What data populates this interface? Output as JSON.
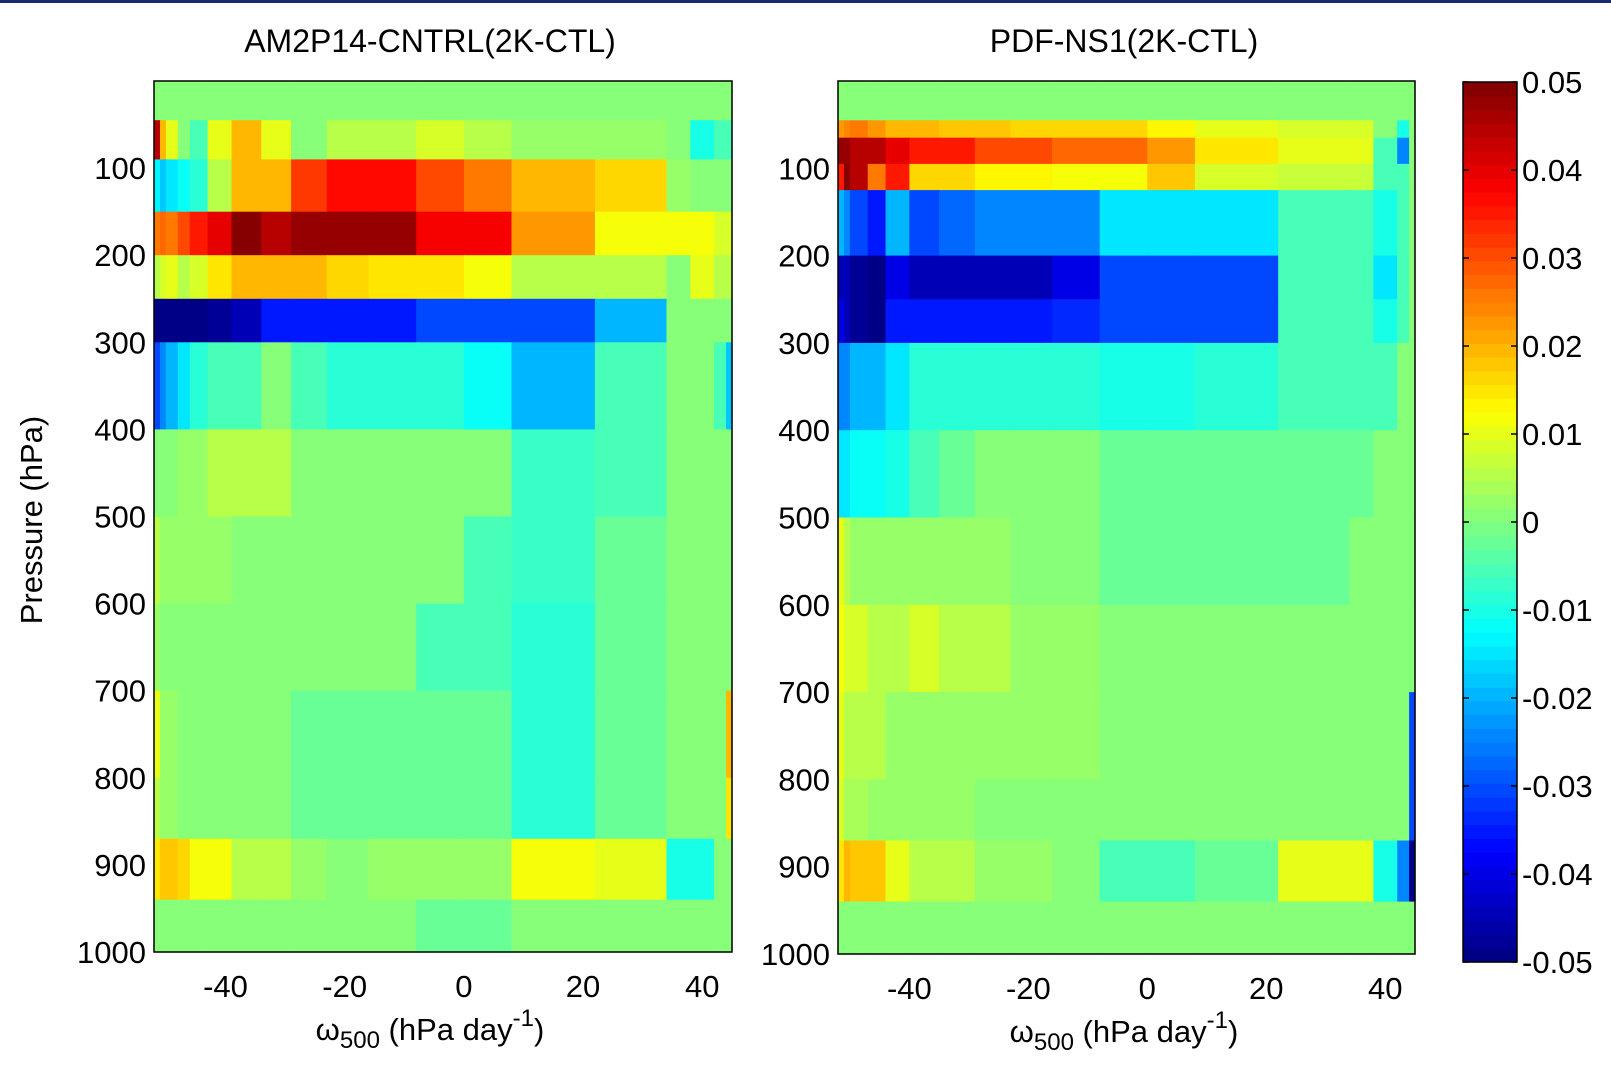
{
  "chart_data": [
    {
      "type": "heatmap",
      "title": "AM2P14-CNTRL(2K-CTL)",
      "xlabel": {
        "main": "ω",
        "sub": "500",
        "rest": " (hPa day",
        "sup": "-1",
        "close": ")"
      },
      "ylabel": "Pressure (hPa)",
      "xticks": [
        "-40",
        "-20",
        "0",
        "20",
        "40"
      ],
      "xtick_values": [
        -40,
        -20,
        0,
        20,
        40
      ],
      "yticks": [
        "100",
        "200",
        "300",
        "400",
        "500",
        "600",
        "700",
        "800",
        "900",
        "1000"
      ],
      "ytick_values": [
        100,
        200,
        300,
        400,
        500,
        600,
        700,
        800,
        900,
        1000
      ],
      "xlim": [
        -52,
        45
      ],
      "ylim": [
        0,
        1000
      ],
      "x_edges": [
        -52,
        -51,
        -50,
        -48,
        -46,
        -43,
        -39,
        -34,
        -29,
        -23,
        -16,
        -8,
        0,
        8,
        22,
        34,
        38,
        42,
        44,
        45
      ],
      "y_edges": [
        0,
        45,
        90,
        150,
        200,
        250,
        300,
        400,
        500,
        600,
        700,
        800,
        870,
        940,
        1000
      ],
      "z": [
        [
          0,
          0,
          0,
          0,
          0,
          0,
          0,
          0,
          0,
          0,
          0,
          0,
          0,
          0,
          0,
          0,
          0,
          0,
          0
        ],
        [
          0.045,
          0.02,
          0.01,
          0,
          -0.005,
          0.01,
          0.02,
          0.01,
          0,
          0.005,
          0.005,
          0.008,
          0.005,
          0.003,
          0.002,
          0,
          -0.01,
          -0.005,
          -0.005
        ],
        [
          -0.013,
          -0.018,
          -0.015,
          -0.012,
          -0.008,
          0.005,
          0.02,
          0.02,
          0.032,
          0.036,
          0.036,
          0.03,
          0.025,
          0.02,
          0.017,
          0.003,
          0,
          0,
          0
        ],
        [
          0.025,
          0.028,
          0.025,
          0.03,
          0.035,
          0.04,
          0.05,
          0.045,
          0.048,
          0.047,
          0.047,
          0.038,
          0.038,
          0.022,
          0.012,
          0.012,
          0.012,
          0.008,
          0.008
        ],
        [
          0.005,
          0.008,
          0.01,
          0.005,
          0.008,
          0.015,
          0.02,
          0.02,
          0.02,
          0.016,
          0.015,
          0.015,
          0.012,
          0.005,
          0.005,
          0,
          0.01,
          0.005,
          0.005
        ],
        [
          -0.05,
          -0.05,
          -0.05,
          -0.05,
          -0.05,
          -0.048,
          -0.045,
          -0.035,
          -0.035,
          -0.035,
          -0.035,
          -0.03,
          -0.03,
          -0.03,
          -0.02,
          0,
          0,
          0,
          0
        ],
        [
          -0.03,
          -0.025,
          -0.02,
          -0.015,
          -0.008,
          -0.005,
          -0.005,
          0,
          -0.005,
          -0.008,
          -0.008,
          -0.008,
          -0.012,
          -0.02,
          -0.005,
          0,
          0,
          -0.005,
          -0.018
        ],
        [
          0,
          0,
          0,
          0.002,
          0.002,
          0.005,
          0.005,
          0.005,
          0,
          0,
          0,
          0,
          0,
          -0.007,
          -0.005,
          0,
          0,
          0,
          0
        ],
        [
          0.005,
          0.002,
          0.002,
          0.002,
          0.002,
          0.003,
          0,
          0,
          0,
          0,
          0,
          0,
          -0.005,
          -0.007,
          -0.003,
          0,
          0,
          0,
          0
        ],
        [
          0.002,
          0,
          0,
          0,
          0,
          0,
          0,
          0,
          0,
          0,
          0,
          -0.005,
          -0.005,
          -0.008,
          -0.003,
          0,
          0,
          0,
          0
        ],
        [
          0.01,
          0.003,
          0.003,
          0,
          0,
          0,
          0,
          0,
          -0.003,
          -0.003,
          -0.003,
          -0.003,
          -0.003,
          -0.008,
          -0.003,
          0,
          0,
          0,
          0.02
        ],
        [
          0.005,
          0.002,
          0.002,
          0,
          0,
          0,
          0,
          0,
          -0.003,
          -0.003,
          -0.003,
          -0.003,
          -0.003,
          -0.008,
          -0.003,
          0,
          0,
          0,
          0.015
        ],
        [
          0.015,
          0.018,
          0.018,
          0.017,
          0.012,
          0.012,
          0.005,
          0.005,
          0.003,
          0,
          0.002,
          0.002,
          0.002,
          0.012,
          0.01,
          -0.01,
          -0.01,
          0,
          0
        ],
        [
          0,
          0,
          0,
          0,
          0,
          0,
          0,
          0,
          0,
          0,
          0,
          -0.002,
          -0.002,
          0,
          0,
          0,
          0,
          0,
          0
        ]
      ]
    },
    {
      "type": "heatmap",
      "title": "PDF-NS1(2K-CTL)",
      "xlabel": {
        "main": "ω",
        "sub": "500",
        "rest": " (hPa day",
        "sup": "-1",
        "close": ")"
      },
      "xticks": [
        "-40",
        "-20",
        "0",
        "20",
        "40"
      ],
      "xtick_values": [
        -40,
        -20,
        0,
        20,
        40
      ],
      "yticks": [
        "100",
        "200",
        "300",
        "400",
        "500",
        "600",
        "700",
        "800",
        "900",
        "1000"
      ],
      "ytick_values": [
        100,
        200,
        300,
        400,
        500,
        600,
        700,
        800,
        900,
        1000
      ],
      "xlim": [
        -52,
        45
      ],
      "ylim": [
        0,
        1000
      ],
      "x_edges": [
        -52,
        -51,
        -50,
        -47,
        -44,
        -40,
        -35,
        -29,
        -23,
        -16,
        -8,
        0,
        8,
        22,
        34,
        38,
        42,
        44,
        45
      ],
      "y_edges": [
        0,
        45,
        65,
        95,
        125,
        200,
        250,
        300,
        400,
        500,
        600,
        700,
        800,
        870,
        940,
        1000
      ],
      "z": [
        [
          0,
          0,
          0,
          0,
          0,
          0,
          0,
          0,
          0,
          0,
          0,
          0,
          0,
          0,
          0,
          0,
          0,
          0
        ],
        [
          0.022,
          0.024,
          0.025,
          0.022,
          0.02,
          0.02,
          0.018,
          0.018,
          0.016,
          0.016,
          0.016,
          0.013,
          0.01,
          0.009,
          0.009,
          0,
          -0.01,
          0
        ],
        [
          0.048,
          0.048,
          0.045,
          0.045,
          0.04,
          0.035,
          0.035,
          0.03,
          0.03,
          0.028,
          0.028,
          0.022,
          0.015,
          0.01,
          0.01,
          -0.005,
          -0.025,
          0
        ],
        [
          0.035,
          0.05,
          0.045,
          0.025,
          0.035,
          0.017,
          0.016,
          0.014,
          0.014,
          0.012,
          0.012,
          0.018,
          0.008,
          0.007,
          0.007,
          -0.005,
          -0.005,
          0
        ],
        [
          -0.02,
          -0.025,
          -0.03,
          -0.035,
          -0.02,
          -0.03,
          -0.028,
          -0.025,
          -0.025,
          -0.025,
          -0.015,
          -0.015,
          -0.015,
          -0.005,
          -0.005,
          -0.01,
          -0.005,
          0
        ],
        [
          -0.045,
          -0.045,
          -0.048,
          -0.05,
          -0.04,
          -0.045,
          -0.045,
          -0.045,
          -0.045,
          -0.04,
          -0.03,
          -0.03,
          -0.03,
          -0.005,
          -0.005,
          -0.015,
          -0.005,
          0
        ],
        [
          -0.04,
          -0.045,
          -0.048,
          -0.05,
          -0.035,
          -0.035,
          -0.035,
          -0.035,
          -0.035,
          -0.033,
          -0.03,
          -0.03,
          -0.03,
          -0.005,
          -0.005,
          -0.01,
          -0.005,
          0
        ],
        [
          -0.025,
          -0.025,
          -0.02,
          -0.02,
          -0.015,
          -0.008,
          -0.008,
          -0.008,
          -0.008,
          -0.008,
          -0.01,
          -0.01,
          -0.008,
          -0.005,
          -0.005,
          -0.005,
          0,
          0
        ],
        [
          -0.015,
          -0.015,
          -0.012,
          -0.012,
          -0.01,
          -0.005,
          -0.003,
          0,
          0,
          0,
          -0.003,
          -0.003,
          -0.003,
          -0.003,
          -0.003,
          0,
          0,
          0
        ],
        [
          0.01,
          0.005,
          0.002,
          0.002,
          0.002,
          0.002,
          0.002,
          0.002,
          0,
          0,
          -0.003,
          -0.003,
          -0.003,
          -0.003,
          0,
          0,
          0,
          0
        ],
        [
          0.012,
          0.008,
          0.008,
          0.005,
          0.005,
          0.008,
          0.005,
          0.005,
          0.003,
          0.003,
          0,
          0,
          0,
          0,
          0,
          0,
          0,
          0
        ],
        [
          0.01,
          0.005,
          0.005,
          0.005,
          0.003,
          0.003,
          0.003,
          0.002,
          0.002,
          0.002,
          0,
          0,
          0,
          0,
          0,
          0,
          0,
          -0.03
        ],
        [
          0.008,
          0.004,
          0.004,
          0.003,
          0.003,
          0.002,
          0.002,
          0,
          0,
          0,
          0,
          0,
          0,
          0,
          0,
          0,
          0,
          -0.03
        ],
        [
          0.015,
          0.02,
          0.018,
          0.018,
          0.01,
          0.005,
          0.005,
          0.003,
          0.003,
          0,
          -0.005,
          -0.005,
          -0.003,
          0.01,
          0.01,
          -0.01,
          -0.025,
          -0.05
        ],
        [
          0,
          0,
          0,
          0,
          0,
          0,
          0,
          0,
          0,
          0,
          0,
          0,
          0,
          0,
          0,
          0,
          0,
          0
        ]
      ]
    }
  ],
  "colorbar": {
    "min": -0.05,
    "max": 0.05,
    "tick_values": [
      0.05,
      0.04,
      0.03,
      0.02,
      0.01,
      0,
      -0.01,
      -0.02,
      -0.03,
      -0.04,
      -0.05
    ],
    "tick_labels": [
      "0.05",
      "0.04",
      "0.03",
      "0.02",
      "0.01",
      "0",
      "-0.01",
      "-0.02",
      "-0.03",
      "-0.04",
      "-0.05"
    ],
    "colormap": "jet"
  }
}
